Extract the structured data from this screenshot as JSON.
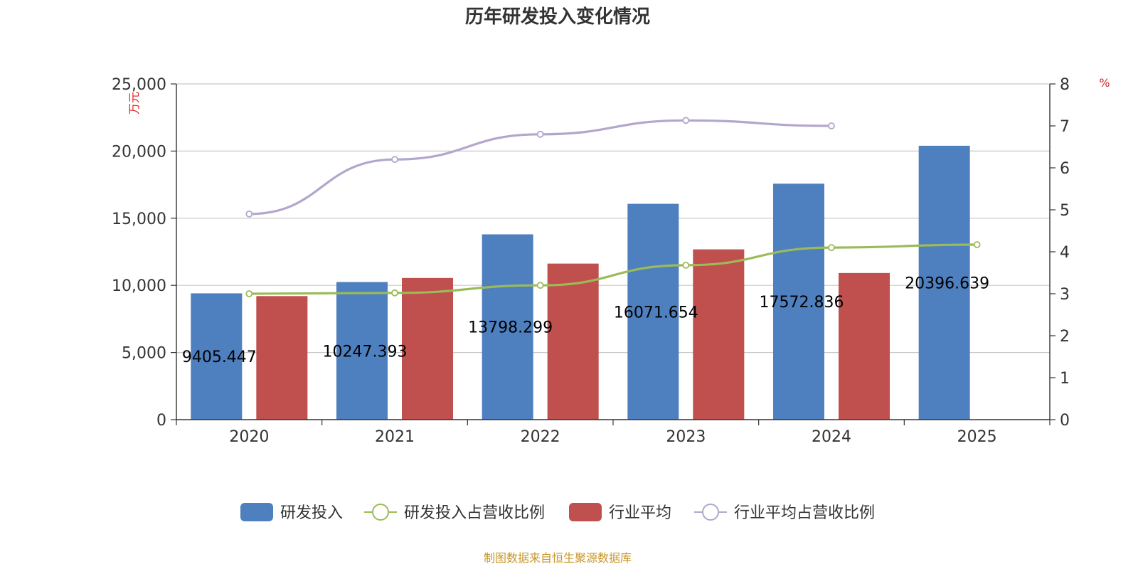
{
  "chart_data": {
    "type": "bar",
    "title": "历年研发投入变化情况",
    "categories": [
      "2020",
      "2021",
      "2022",
      "2023",
      "2024",
      "2025"
    ],
    "y_left": {
      "unit": "万元",
      "range": [
        0,
        25000
      ],
      "ticks": [
        "0",
        "5,000",
        "10,000",
        "15,000",
        "20,000",
        "25,000"
      ]
    },
    "y_right": {
      "unit": "%",
      "range": [
        0,
        8
      ],
      "ticks": [
        "0",
        "1",
        "2",
        "3",
        "4",
        "5",
        "6",
        "7",
        "8"
      ]
    },
    "grid": true,
    "legend_position": "bottom",
    "series": [
      {
        "name": "研发投入",
        "kind": "bar",
        "axis": "left",
        "color": "#4e7fbe",
        "values": [
          9405.447,
          10247.393,
          13798.299,
          16071.654,
          17572.836,
          20396.639
        ],
        "labels": [
          "9405.447",
          "10247.393",
          "13798.299",
          "16071.654",
          "17572.836",
          "20396.639"
        ]
      },
      {
        "name": "研发投入占营收比例",
        "kind": "line",
        "axis": "right",
        "color": "#9bbb59",
        "values": [
          3.0,
          3.02,
          3.2,
          3.68,
          4.1,
          4.17
        ]
      },
      {
        "name": "行业平均",
        "kind": "bar",
        "axis": "left",
        "color": "#c0504d",
        "values": [
          9200,
          10550,
          11620,
          12680,
          10920,
          null
        ]
      },
      {
        "name": "行业平均占营收比例",
        "kind": "line",
        "axis": "right",
        "color": "#b3a6cc",
        "values": [
          4.9,
          6.2,
          6.8,
          7.13,
          7.0,
          null
        ]
      }
    ]
  },
  "footer": {
    "source": "制图数据来自恒生聚源数据库"
  }
}
